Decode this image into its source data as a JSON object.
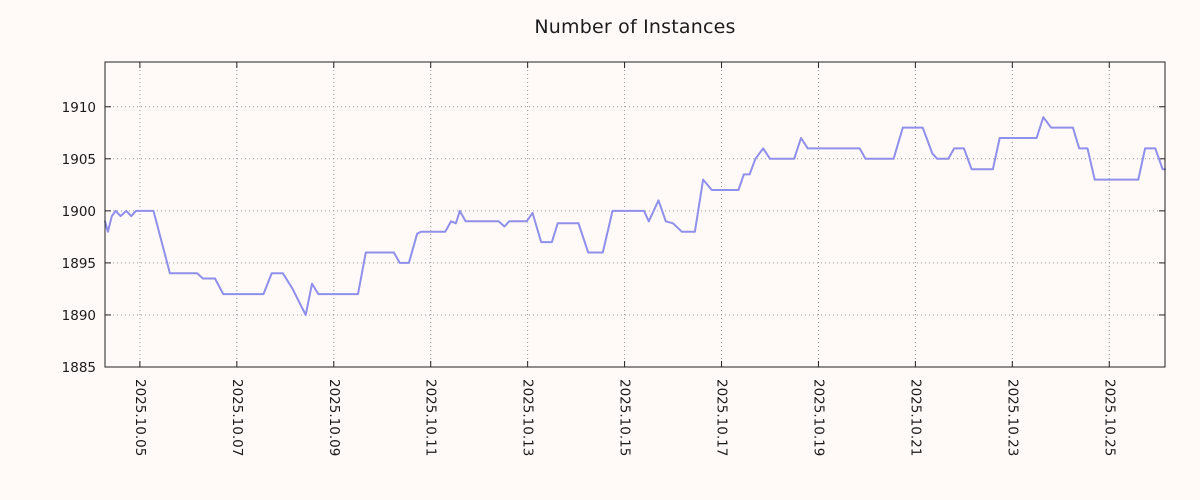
{
  "chart_data": {
    "type": "line",
    "title": "Number of Instances",
    "xlabel": "",
    "ylabel": "",
    "legend": "none",
    "grid": "dotted",
    "x_unit": "date (2025 October)",
    "x_ticks": [
      {
        "day": 5,
        "label": "2025.10.05"
      },
      {
        "day": 7,
        "label": "2025.10.07"
      },
      {
        "day": 9,
        "label": "2025.10.09"
      },
      {
        "day": 11,
        "label": "2025.10.11"
      },
      {
        "day": 13,
        "label": "2025.10.13"
      },
      {
        "day": 15,
        "label": "2025.10.15"
      },
      {
        "day": 17,
        "label": "2025.10.17"
      },
      {
        "day": 19,
        "label": "2025.10.19"
      },
      {
        "day": 21,
        "label": "2025.10.21"
      },
      {
        "day": 23,
        "label": "2025.10.23"
      },
      {
        "day": 25,
        "label": "2025.10.25"
      }
    ],
    "y_ticks": [
      1885,
      1890,
      1895,
      1900,
      1905,
      1910
    ],
    "x_range": [
      4.28,
      26.15
    ],
    "y_range": [
      1885,
      1914.3
    ],
    "colors": {
      "line": "#8f8fec",
      "background": "#fff9f7",
      "grid": "#999999",
      "axis": "#222222",
      "text": "#1a1a1a"
    },
    "points": [
      [
        4.28,
        1899
      ],
      [
        4.34,
        1898
      ],
      [
        4.42,
        1899.5
      ],
      [
        4.5,
        1900
      ],
      [
        4.6,
        1899.5
      ],
      [
        4.72,
        1900
      ],
      [
        4.82,
        1899.5
      ],
      [
        4.92,
        1900
      ],
      [
        5.28,
        1900
      ],
      [
        5.62,
        1894
      ],
      [
        6.18,
        1894
      ],
      [
        6.3,
        1893.5
      ],
      [
        6.55,
        1893.5
      ],
      [
        6.72,
        1892
      ],
      [
        7.55,
        1892
      ],
      [
        7.72,
        1894
      ],
      [
        7.95,
        1894
      ],
      [
        8.15,
        1892.5
      ],
      [
        8.42,
        1890
      ],
      [
        8.55,
        1893
      ],
      [
        8.68,
        1892
      ],
      [
        9.5,
        1892
      ],
      [
        9.66,
        1896
      ],
      [
        10.24,
        1896
      ],
      [
        10.36,
        1895
      ],
      [
        10.55,
        1895
      ],
      [
        10.72,
        1897.8
      ],
      [
        10.8,
        1898
      ],
      [
        11.3,
        1898
      ],
      [
        11.42,
        1899
      ],
      [
        11.52,
        1898.8
      ],
      [
        11.6,
        1900
      ],
      [
        11.72,
        1899
      ],
      [
        12.4,
        1899
      ],
      [
        12.52,
        1898.5
      ],
      [
        12.62,
        1899
      ],
      [
        12.98,
        1899
      ],
      [
        13.1,
        1899.8
      ],
      [
        13.28,
        1897
      ],
      [
        13.5,
        1897
      ],
      [
        13.62,
        1898.8
      ],
      [
        14.05,
        1898.8
      ],
      [
        14.25,
        1896
      ],
      [
        14.55,
        1896
      ],
      [
        14.75,
        1900
      ],
      [
        15.4,
        1900
      ],
      [
        15.5,
        1899
      ],
      [
        15.7,
        1901
      ],
      [
        15.85,
        1899
      ],
      [
        16.0,
        1898.8
      ],
      [
        16.18,
        1898
      ],
      [
        16.45,
        1898
      ],
      [
        16.62,
        1903
      ],
      [
        16.8,
        1902
      ],
      [
        17.35,
        1902
      ],
      [
        17.46,
        1903.5
      ],
      [
        17.58,
        1903.5
      ],
      [
        17.7,
        1905
      ],
      [
        17.86,
        1906
      ],
      [
        18.0,
        1905
      ],
      [
        18.5,
        1905
      ],
      [
        18.64,
        1907
      ],
      [
        18.78,
        1906
      ],
      [
        19.85,
        1906
      ],
      [
        19.97,
        1905
      ],
      [
        20.55,
        1905
      ],
      [
        20.74,
        1908
      ],
      [
        21.15,
        1908
      ],
      [
        21.35,
        1905.5
      ],
      [
        21.45,
        1905
      ],
      [
        21.68,
        1905
      ],
      [
        21.8,
        1906
      ],
      [
        22.0,
        1906
      ],
      [
        22.16,
        1904
      ],
      [
        22.6,
        1904
      ],
      [
        22.74,
        1907
      ],
      [
        23.5,
        1907
      ],
      [
        23.64,
        1909
      ],
      [
        23.8,
        1908
      ],
      [
        24.25,
        1908
      ],
      [
        24.38,
        1906
      ],
      [
        24.55,
        1906
      ],
      [
        24.7,
        1903
      ],
      [
        25.6,
        1903
      ],
      [
        25.74,
        1906
      ],
      [
        25.95,
        1906
      ],
      [
        26.1,
        1904
      ],
      [
        26.15,
        1904
      ]
    ]
  }
}
